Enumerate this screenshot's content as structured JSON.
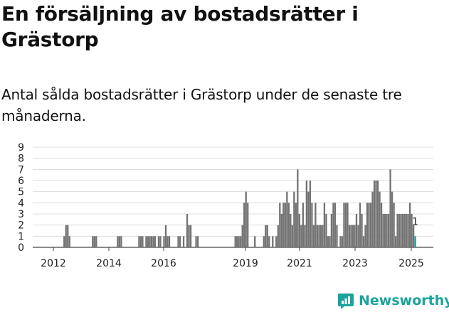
{
  "title": "En försäljning av bostadsrätter i Grästorp",
  "subtitle": "Antal sålda bostadsrätter i Grästorp under de senaste tre månaderna.",
  "brand": {
    "name": "Newsworthy",
    "color": "#1aa39a"
  },
  "chart_data": {
    "type": "bar",
    "xlabel": "",
    "ylabel": "",
    "ylim": [
      0,
      9
    ],
    "yticks": [
      0,
      1,
      2,
      3,
      4,
      5,
      6,
      7,
      8,
      9
    ],
    "xticks": [
      "2012",
      "2014",
      "2016",
      "2019",
      "2021",
      "2023",
      "2025"
    ],
    "grid": true,
    "bar_color": "#737373",
    "highlight_color": "#1aa39a",
    "highlight_label": "1",
    "series": [
      {
        "values": [
          0,
          0,
          0,
          0,
          0,
          0,
          0,
          0,
          0,
          0,
          0,
          0,
          0,
          0,
          0,
          0,
          1,
          2,
          2,
          1,
          0,
          0,
          0,
          0,
          0,
          0,
          0,
          0,
          0,
          0,
          0,
          0,
          1,
          1,
          1,
          0,
          0,
          0,
          0,
          0,
          0,
          0,
          0,
          0,
          0,
          0,
          1,
          1,
          1,
          0,
          0,
          0,
          0,
          0,
          0,
          0,
          0,
          0,
          1,
          1,
          1,
          0,
          1,
          1,
          1,
          1,
          1,
          1,
          0,
          1,
          1,
          0,
          1,
          2,
          1,
          1,
          0,
          0,
          0,
          0,
          1,
          1,
          0,
          1,
          0,
          3,
          2,
          2,
          0,
          0,
          1,
          1,
          0,
          0,
          0,
          0,
          0,
          0,
          0,
          0,
          0,
          0,
          0,
          0,
          0,
          0,
          0,
          0,
          0,
          0,
          0,
          0,
          1,
          1,
          1,
          1,
          2,
          4,
          5,
          4,
          0,
          0,
          0,
          1,
          0,
          0,
          0,
          0,
          1,
          2,
          2,
          1,
          0,
          1,
          0,
          1,
          2,
          4,
          3,
          4,
          4,
          5,
          4,
          3,
          2,
          5,
          4,
          7,
          3,
          2,
          4,
          2,
          6,
          5,
          6,
          4,
          2,
          4,
          2,
          2,
          2,
          2,
          4,
          3,
          1,
          1,
          3,
          4,
          4,
          2,
          0,
          1,
          1,
          4,
          4,
          4,
          2,
          2,
          2,
          2,
          3,
          2,
          4,
          3,
          1,
          2,
          4,
          4,
          4,
          5,
          6,
          6,
          6,
          5,
          4,
          3,
          3,
          3,
          3,
          7,
          5,
          4,
          1,
          3,
          3,
          3,
          3,
          3,
          3,
          3,
          4,
          3,
          2,
          1
        ]
      }
    ]
  }
}
